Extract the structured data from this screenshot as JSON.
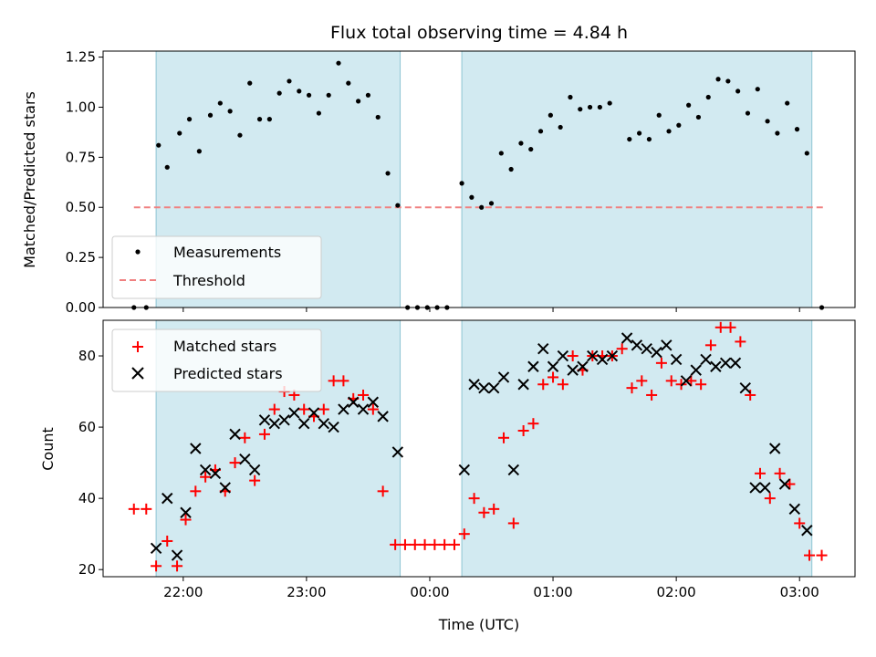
{
  "title": "Flux total observing time = 4.84 h",
  "top": {
    "ylabel": "Matched/Predicted stars",
    "ylim": [
      0,
      1.28
    ],
    "yticks": [
      "0.00",
      "0.25",
      "0.50",
      "0.75",
      "1.00",
      "1.25"
    ],
    "ytick_values": [
      0,
      0.25,
      0.5,
      0.75,
      1.0,
      1.25
    ],
    "legend": {
      "measurements": "Measurements",
      "threshold": "Threshold"
    },
    "threshold": {
      "value": 0.5,
      "x_range": [
        -2.4,
        3.2
      ],
      "color": "#f08080"
    },
    "measurements": [
      [
        -2.4,
        0.0
      ],
      [
        -2.3,
        0.0
      ],
      [
        -2.2,
        0.81
      ],
      [
        -2.13,
        0.7
      ],
      [
        -2.03,
        0.87
      ],
      [
        -1.95,
        0.94
      ],
      [
        -1.87,
        0.78
      ],
      [
        -1.78,
        0.96
      ],
      [
        -1.7,
        1.02
      ],
      [
        -1.62,
        0.98
      ],
      [
        -1.54,
        0.86
      ],
      [
        -1.46,
        1.12
      ],
      [
        -1.38,
        0.94
      ],
      [
        -1.3,
        0.94
      ],
      [
        -1.22,
        1.07
      ],
      [
        -1.14,
        1.13
      ],
      [
        -1.06,
        1.08
      ],
      [
        -0.98,
        1.06
      ],
      [
        -0.9,
        0.97
      ],
      [
        -0.82,
        1.06
      ],
      [
        -0.74,
        1.22
      ],
      [
        -0.66,
        1.12
      ],
      [
        -0.58,
        1.03
      ],
      [
        -0.5,
        1.06
      ],
      [
        -0.42,
        0.95
      ],
      [
        -0.34,
        0.67
      ],
      [
        -0.26,
        0.51
      ],
      [
        -0.18,
        0.0
      ],
      [
        -0.1,
        0.0
      ],
      [
        -0.02,
        0.0
      ],
      [
        0.06,
        0.0
      ],
      [
        0.14,
        0.0
      ],
      [
        0.26,
        0.62
      ],
      [
        0.34,
        0.55
      ],
      [
        0.42,
        0.5
      ],
      [
        0.5,
        0.52
      ],
      [
        0.58,
        0.77
      ],
      [
        0.66,
        0.69
      ],
      [
        0.74,
        0.82
      ],
      [
        0.82,
        0.79
      ],
      [
        0.9,
        0.88
      ],
      [
        0.98,
        0.96
      ],
      [
        1.06,
        0.9
      ],
      [
        1.14,
        1.05
      ],
      [
        1.22,
        0.99
      ],
      [
        1.3,
        1.0
      ],
      [
        1.38,
        1.0
      ],
      [
        1.46,
        1.02
      ],
      [
        1.62,
        0.84
      ],
      [
        1.7,
        0.87
      ],
      [
        1.78,
        0.84
      ],
      [
        1.86,
        0.96
      ],
      [
        1.94,
        0.88
      ],
      [
        2.02,
        0.91
      ],
      [
        2.1,
        1.01
      ],
      [
        2.18,
        0.95
      ],
      [
        2.26,
        1.05
      ],
      [
        2.34,
        1.14
      ],
      [
        2.42,
        1.13
      ],
      [
        2.5,
        1.08
      ],
      [
        2.58,
        0.97
      ],
      [
        2.66,
        1.09
      ],
      [
        2.74,
        0.93
      ],
      [
        2.82,
        0.87
      ],
      [
        2.9,
        1.02
      ],
      [
        2.98,
        0.89
      ],
      [
        3.06,
        0.77
      ],
      [
        3.18,
        0.0
      ]
    ]
  },
  "bottom": {
    "ylabel": "Count",
    "xlabel": "Time (UTC)",
    "ylim": [
      18,
      90
    ],
    "yticks": [
      "20",
      "40",
      "60",
      "80"
    ],
    "ytick_values": [
      20,
      40,
      60,
      80
    ],
    "legend": {
      "matched": "Matched stars",
      "predicted": "Predicted stars"
    },
    "matched": [
      [
        -2.4,
        37
      ],
      [
        -2.3,
        37
      ],
      [
        -2.22,
        21
      ],
      [
        -2.13,
        28
      ],
      [
        -2.05,
        21
      ],
      [
        -1.98,
        34
      ],
      [
        -1.9,
        42
      ],
      [
        -1.82,
        46
      ],
      [
        -1.74,
        48
      ],
      [
        -1.66,
        42
      ],
      [
        -1.58,
        50
      ],
      [
        -1.5,
        57
      ],
      [
        -1.42,
        45
      ],
      [
        -1.34,
        58
      ],
      [
        -1.26,
        65
      ],
      [
        -1.18,
        70
      ],
      [
        -1.1,
        69
      ],
      [
        -1.02,
        65
      ],
      [
        -0.94,
        63
      ],
      [
        -0.86,
        65
      ],
      [
        -0.78,
        73
      ],
      [
        -0.7,
        73
      ],
      [
        -0.62,
        68
      ],
      [
        -0.54,
        69
      ],
      [
        -0.46,
        65
      ],
      [
        -0.38,
        42
      ],
      [
        -0.28,
        27
      ],
      [
        -0.2,
        27
      ],
      [
        -0.12,
        27
      ],
      [
        -0.04,
        27
      ],
      [
        0.04,
        27
      ],
      [
        0.12,
        27
      ],
      [
        0.2,
        27
      ],
      [
        0.28,
        30
      ],
      [
        0.36,
        40
      ],
      [
        0.44,
        36
      ],
      [
        0.52,
        37
      ],
      [
        0.6,
        57
      ],
      [
        0.68,
        33
      ],
      [
        0.76,
        59
      ],
      [
        0.84,
        61
      ],
      [
        0.92,
        72
      ],
      [
        1.0,
        74
      ],
      [
        1.08,
        72
      ],
      [
        1.16,
        80
      ],
      [
        1.24,
        76
      ],
      [
        1.32,
        80
      ],
      [
        1.4,
        80
      ],
      [
        1.48,
        80
      ],
      [
        1.56,
        82
      ],
      [
        1.64,
        71
      ],
      [
        1.72,
        73
      ],
      [
        1.8,
        69
      ],
      [
        1.88,
        78
      ],
      [
        1.96,
        73
      ],
      [
        2.04,
        72
      ],
      [
        2.12,
        73
      ],
      [
        2.2,
        72
      ],
      [
        2.28,
        83
      ],
      [
        2.36,
        88
      ],
      [
        2.44,
        88
      ],
      [
        2.52,
        84
      ],
      [
        2.6,
        69
      ],
      [
        2.68,
        47
      ],
      [
        2.76,
        40
      ],
      [
        2.84,
        47
      ],
      [
        2.92,
        44
      ],
      [
        3.0,
        33
      ],
      [
        3.08,
        24
      ],
      [
        3.18,
        24
      ]
    ],
    "predicted": [
      [
        -2.22,
        26
      ],
      [
        -2.13,
        40
      ],
      [
        -2.05,
        24
      ],
      [
        -1.98,
        36
      ],
      [
        -1.9,
        54
      ],
      [
        -1.82,
        48
      ],
      [
        -1.74,
        47
      ],
      [
        -1.66,
        43
      ],
      [
        -1.58,
        58
      ],
      [
        -1.5,
        51
      ],
      [
        -1.42,
        48
      ],
      [
        -1.34,
        62
      ],
      [
        -1.26,
        61
      ],
      [
        -1.18,
        62
      ],
      [
        -1.1,
        64
      ],
      [
        -1.02,
        61
      ],
      [
        -0.94,
        64
      ],
      [
        -0.86,
        61
      ],
      [
        -0.78,
        60
      ],
      [
        -0.7,
        65
      ],
      [
        -0.62,
        67
      ],
      [
        -0.54,
        65
      ],
      [
        -0.46,
        67
      ],
      [
        -0.38,
        63
      ],
      [
        -0.26,
        53
      ],
      [
        0.28,
        48
      ],
      [
        0.36,
        72
      ],
      [
        0.44,
        71
      ],
      [
        0.52,
        71
      ],
      [
        0.6,
        74
      ],
      [
        0.68,
        48
      ],
      [
        0.76,
        72
      ],
      [
        0.84,
        77
      ],
      [
        0.92,
        82
      ],
      [
        1.0,
        77
      ],
      [
        1.08,
        80
      ],
      [
        1.16,
        76
      ],
      [
        1.24,
        77
      ],
      [
        1.32,
        80
      ],
      [
        1.4,
        79
      ],
      [
        1.48,
        80
      ],
      [
        1.6,
        85
      ],
      [
        1.68,
        83
      ],
      [
        1.76,
        82
      ],
      [
        1.84,
        81
      ],
      [
        1.92,
        83
      ],
      [
        2.0,
        79
      ],
      [
        2.08,
        73
      ],
      [
        2.16,
        76
      ],
      [
        2.24,
        79
      ],
      [
        2.32,
        77
      ],
      [
        2.4,
        78
      ],
      [
        2.48,
        78
      ],
      [
        2.56,
        71
      ],
      [
        2.64,
        43
      ],
      [
        2.72,
        43
      ],
      [
        2.8,
        54
      ],
      [
        2.88,
        44
      ],
      [
        2.96,
        37
      ],
      [
        3.06,
        31
      ]
    ]
  },
  "x_axis": {
    "xlim": [
      -2.65,
      3.45
    ],
    "tick_values": [
      -2,
      -1,
      0,
      1,
      2,
      3
    ],
    "tick_labels": [
      "22:00",
      "23:00",
      "00:00",
      "01:00",
      "02:00",
      "03:00"
    ]
  },
  "observing_windows": [
    [
      -2.22,
      -0.24
    ],
    [
      0.26,
      3.1
    ]
  ],
  "colors": {
    "window": "#add8e6",
    "window_edge": "#8fc5d3",
    "measurements": "#000000",
    "matched": "#ff0000",
    "predicted": "#000000"
  },
  "chart_data": {
    "type": "scatter",
    "title": "Flux total observing time = 4.84 h",
    "xlabel": "Time (UTC)",
    "panels": [
      "top",
      "bottom"
    ]
  }
}
